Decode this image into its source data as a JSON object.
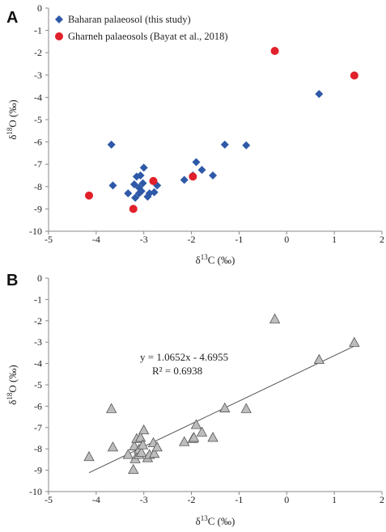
{
  "chart_data": [
    {
      "type": "scatter",
      "panel": "A",
      "xlabel": "δ13C (‰)",
      "ylabel": "δ18O (‰)",
      "xlim": [
        -5,
        2
      ],
      "ylim": [
        -10,
        0
      ],
      "x_ticks": [
        "-5",
        "-4",
        "-3",
        "-2",
        "-1",
        "0",
        "1",
        "2"
      ],
      "y_ticks": [
        "0",
        "-1",
        "-2",
        "-3",
        "-4",
        "-5",
        "-6",
        "-7",
        "-8",
        "-9",
        "-10"
      ],
      "grid": false,
      "legend_position": "top-left",
      "series": [
        {
          "name": "Baharan palaeosol (this study)",
          "marker": "diamond",
          "color": "#2E59A8",
          "points": [
            [
              -3.68,
              -6.12
            ],
            [
              -3.65,
              -7.95
            ],
            [
              -3.33,
              -8.3
            ],
            [
              -3.2,
              -7.9
            ],
            [
              -3.18,
              -8.5
            ],
            [
              -3.15,
              -7.55
            ],
            [
              -3.1,
              -8.3
            ],
            [
              -3.1,
              -8.05
            ],
            [
              -3.07,
              -7.5
            ],
            [
              -3.05,
              -8.2
            ],
            [
              -3.02,
              -7.85
            ],
            [
              -3.0,
              -7.15
            ],
            [
              -2.92,
              -8.45
            ],
            [
              -2.88,
              -8.3
            ],
            [
              -2.78,
              -8.25
            ],
            [
              -2.72,
              -7.95
            ],
            [
              -2.15,
              -7.7
            ],
            [
              -1.97,
              -7.5
            ],
            [
              -1.9,
              -6.9
            ],
            [
              -1.78,
              -7.25
            ],
            [
              -1.55,
              -7.5
            ],
            [
              -1.3,
              -6.12
            ],
            [
              -0.85,
              -6.15
            ],
            [
              0.68,
              -3.85
            ]
          ]
        },
        {
          "name": "Gharneh palaeosols (Bayat et al., 2018)",
          "marker": "circle",
          "color": "#E0202A",
          "points": [
            [
              -4.15,
              -8.4
            ],
            [
              -3.22,
              -9.0
            ],
            [
              -2.8,
              -7.75
            ],
            [
              -1.97,
              -7.55
            ],
            [
              -0.25,
              -1.92
            ],
            [
              1.42,
              -3.02
            ]
          ]
        }
      ]
    },
    {
      "type": "scatter",
      "panel": "B",
      "xlabel": "δ13C (‰)",
      "ylabel": "δ18O (‰)",
      "xlim": [
        -5,
        2
      ],
      "ylim": [
        -10,
        0
      ],
      "x_ticks": [
        "-5",
        "-4",
        "-3",
        "-2",
        "-1",
        "0",
        "1",
        "2"
      ],
      "y_ticks": [
        "0",
        "-1",
        "-2",
        "-3",
        "-4",
        "-5",
        "-6",
        "-7",
        "-8",
        "-9",
        "-10"
      ],
      "grid": false,
      "series": [
        {
          "marker": "triangle",
          "color": "#BDBDBD",
          "points": [
            [
              -4.15,
              -8.4
            ],
            [
              -3.68,
              -6.15
            ],
            [
              -3.65,
              -7.95
            ],
            [
              -3.33,
              -8.3
            ],
            [
              -3.22,
              -9.0
            ],
            [
              -3.2,
              -7.9
            ],
            [
              -3.18,
              -8.5
            ],
            [
              -3.15,
              -7.55
            ],
            [
              -3.1,
              -8.3
            ],
            [
              -3.1,
              -8.05
            ],
            [
              -3.07,
              -7.5
            ],
            [
              -3.05,
              -8.2
            ],
            [
              -3.02,
              -7.85
            ],
            [
              -3.0,
              -7.15
            ],
            [
              -2.92,
              -8.45
            ],
            [
              -2.88,
              -8.3
            ],
            [
              -2.8,
              -7.75
            ],
            [
              -2.78,
              -8.25
            ],
            [
              -2.72,
              -7.95
            ],
            [
              -2.15,
              -7.7
            ],
            [
              -1.97,
              -7.55
            ],
            [
              -1.95,
              -7.5
            ],
            [
              -1.9,
              -6.9
            ],
            [
              -1.78,
              -7.25
            ],
            [
              -1.55,
              -7.5
            ],
            [
              -1.3,
              -6.12
            ],
            [
              -0.85,
              -6.15
            ],
            [
              -0.25,
              -1.95
            ],
            [
              0.68,
              -3.85
            ],
            [
              1.42,
              -3.05
            ]
          ]
        }
      ],
      "trendline": {
        "slope": 1.0652,
        "intercept": -4.6955,
        "x_range": [
          -4.15,
          1.42
        ]
      },
      "equation": "y = 1.0652x - 4.6955",
      "r_squared": "R² = 0.6938"
    }
  ],
  "colors": {
    "axis": "#888888",
    "trendline": "#555555",
    "marker_edge": "#555555"
  }
}
